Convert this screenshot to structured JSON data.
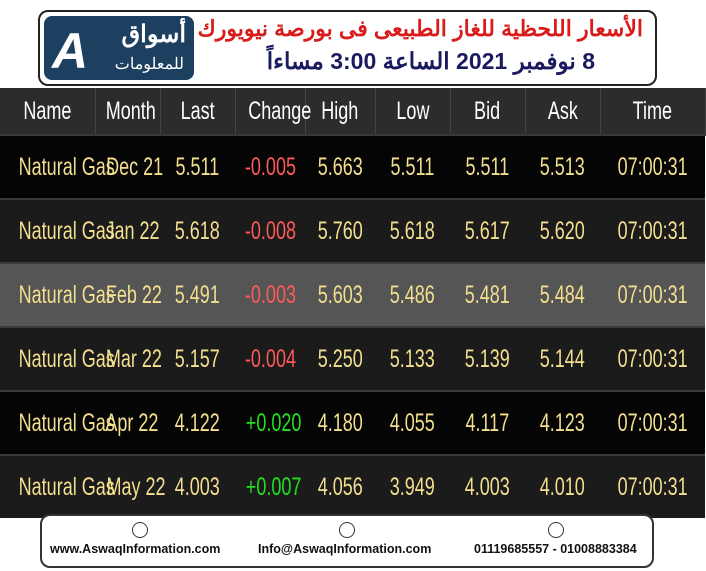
{
  "header": {
    "logo": {
      "name": "أسواق",
      "subtitle": "للمعلومات"
    },
    "title": "الأسعار اللحظية للغاز الطبيعى فى بورصة نيويورك",
    "subtitle": "8 نوفمبر 2021 الساعة 3:00 مساءاً"
  },
  "table": {
    "columns": [
      "Name",
      "Month",
      "Last",
      "Change",
      "High",
      "Low",
      "Bid",
      "Ask",
      "Time"
    ],
    "rows": [
      [
        "Natural Gas",
        "Dec 21",
        "5.511",
        "-0.005",
        "5.663",
        "5.511",
        "5.511",
        "5.513",
        "07:00:31"
      ],
      [
        "Natural Gas",
        "Jan 22",
        "5.618",
        "-0.008",
        "5.760",
        "5.618",
        "5.617",
        "5.620",
        "07:00:31"
      ],
      [
        "Natural Gas",
        "Feb 22",
        "5.491",
        "-0.003",
        "5.603",
        "5.486",
        "5.481",
        "5.484",
        "07:00:31"
      ],
      [
        "Natural Gas",
        "Mar 22",
        "5.157",
        "-0.004",
        "5.250",
        "5.133",
        "5.139",
        "5.144",
        "07:00:31"
      ],
      [
        "Natural Gas",
        "Apr 22",
        "4.122",
        "+0.020",
        "4.180",
        "4.055",
        "4.117",
        "4.123",
        "07:00:31"
      ],
      [
        "Natural Gas",
        "May 22",
        "4.003",
        "+0.007",
        "4.056",
        "3.949",
        "4.003",
        "4.010",
        "07:00:31"
      ]
    ]
  },
  "footer": {
    "website": "www.AswaqInformation.com",
    "email": "Info@AswaqInformation.com",
    "phone": "01119685557 - 01008883384"
  }
}
